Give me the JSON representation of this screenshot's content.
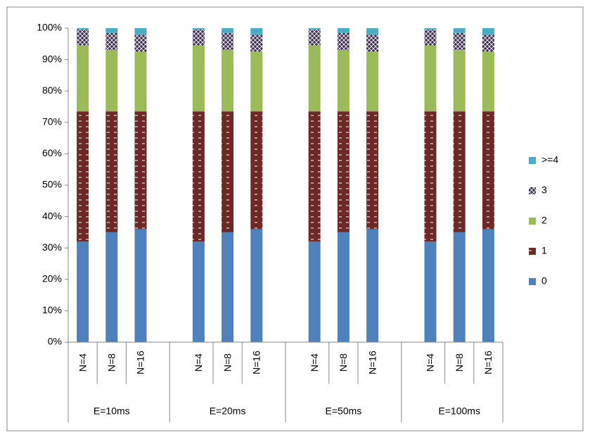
{
  "chart_data": {
    "type": "stacked_bar_100",
    "categories": [
      "N=4",
      "N=8",
      "N=16",
      "N=4",
      "N=8",
      "N=16",
      "N=4",
      "N=8",
      "N=16",
      "N=4",
      "N=8",
      "N=16"
    ],
    "category_groups": [
      "E=10ms",
      "E=20ms",
      "E=50ms",
      "E=100ms"
    ],
    "series": [
      {
        "name": "0",
        "color": "#4f81bd",
        "values": [
          32,
          35,
          36,
          32,
          35,
          36,
          32,
          35,
          36,
          32,
          35,
          36
        ]
      },
      {
        "name": "1",
        "color": "#6e2826",
        "pattern": "dash",
        "values": [
          41.5,
          38.5,
          37.5,
          41.5,
          38.5,
          37.5,
          41.5,
          38.5,
          37.5,
          41.5,
          38.5,
          37.5
        ]
      },
      {
        "name": "2",
        "color": "#9bbb59",
        "values": [
          21,
          19.5,
          19,
          21,
          19.5,
          19,
          21,
          19.5,
          19,
          21,
          19.5,
          19
        ]
      },
      {
        "name": "3",
        "color": "#403152",
        "pattern": "check",
        "values": [
          5,
          5.5,
          5.5,
          5,
          5.5,
          5.5,
          5,
          5.5,
          5.5,
          5,
          5.5,
          5.5
        ]
      },
      {
        "name": ">=4",
        "color": "#4bacc6",
        "values": [
          0.5,
          1.5,
          2,
          0.5,
          1.5,
          2,
          0.5,
          1.5,
          2,
          0.5,
          1.5,
          2
        ]
      }
    ],
    "ylim": [
      0,
      100
    ],
    "yticks": [
      {
        "value": 0,
        "label": "0%"
      },
      {
        "value": 10,
        "label": "10%"
      },
      {
        "value": 20,
        "label": "20%"
      },
      {
        "value": 30,
        "label": "30%"
      },
      {
        "value": 40,
        "label": "40%"
      },
      {
        "value": 50,
        "label": "50%"
      },
      {
        "value": 60,
        "label": "60%"
      },
      {
        "value": 70,
        "label": "70%"
      },
      {
        "value": 80,
        "label": "80%"
      },
      {
        "value": 90,
        "label": "90%"
      },
      {
        "value": 100,
        "label": "100%"
      }
    ],
    "grid": false,
    "legend": "right"
  }
}
